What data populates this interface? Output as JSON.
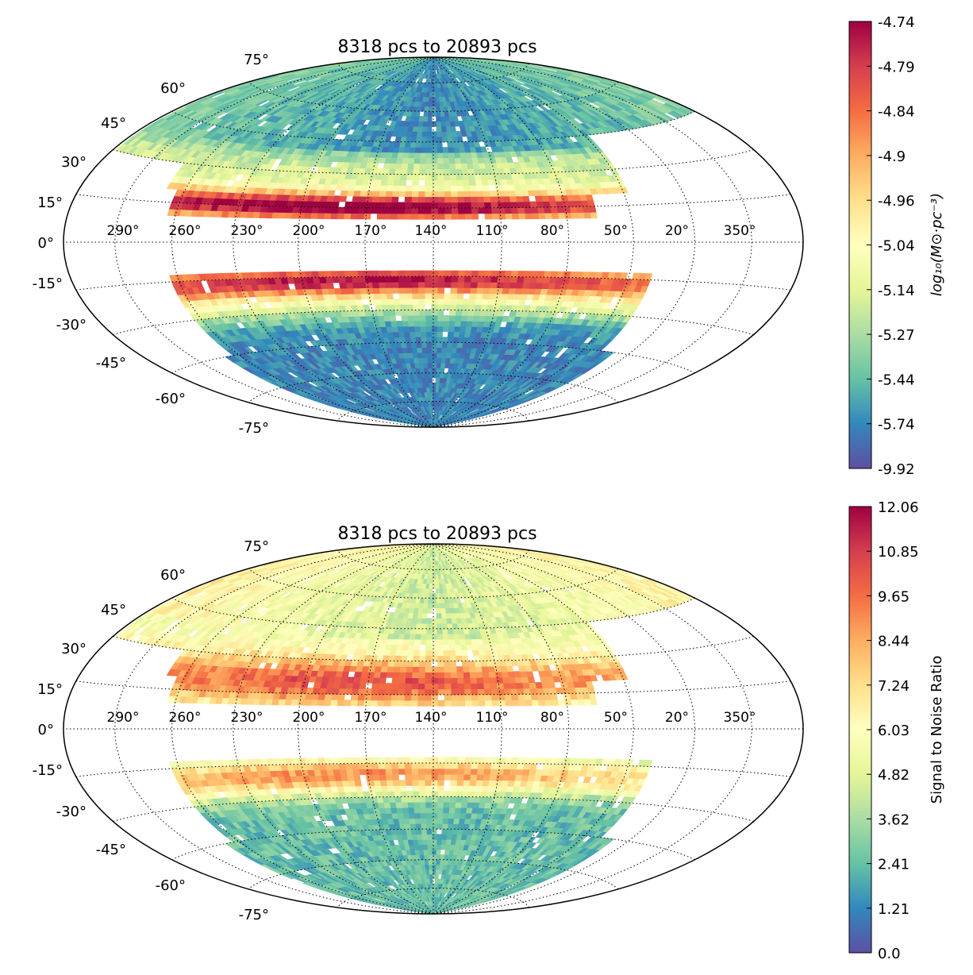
{
  "panels": [
    {
      "title": "8318 pcs to 20893 pcs",
      "lat_labels": [
        "75°",
        "60°",
        "45°",
        "30°",
        "15°",
        "0°",
        "-15°",
        "-30°",
        "-45°",
        "-60°",
        "-75°"
      ],
      "lon_labels": [
        "290°",
        "260°",
        "230°",
        "200°",
        "170°",
        "140°",
        "110°",
        "80°",
        "50°",
        "20°",
        "350°"
      ],
      "colorbar": {
        "label": "log₁₀(M⊙·pc⁻³)",
        "ticks": [
          "-4.74",
          "-4.79",
          "-4.84",
          "-4.9",
          "-4.96",
          "-5.04",
          "-5.14",
          "-5.27",
          "-5.44",
          "-5.74",
          "-9.92"
        ],
        "ticks_order": "top-to-bottom",
        "colormap": "Spectral"
      }
    },
    {
      "title": "8318 pcs to 20893 pcs",
      "lat_labels": [
        "75°",
        "60°",
        "45°",
        "30°",
        "15°",
        "0°",
        "-15°",
        "-30°",
        "-45°",
        "-60°",
        "-75°"
      ],
      "lon_labels": [
        "290°",
        "260°",
        "230°",
        "200°",
        "170°",
        "140°",
        "110°",
        "80°",
        "50°",
        "20°",
        "350°"
      ],
      "colorbar": {
        "label": "Signal to Noise Ratio",
        "ticks": [
          "12.06",
          "10.85",
          "9.65",
          "8.44",
          "7.24",
          "6.03",
          "4.82",
          "3.62",
          "2.41",
          "1.21",
          "0.0"
        ],
        "ticks_order": "top-to-bottom",
        "colormap": "Spectral"
      }
    }
  ],
  "colors": {
    "spectral_stops": [
      "#5e4fa2",
      "#3288bd",
      "#66c2a5",
      "#abdda4",
      "#e6f598",
      "#ffffbf",
      "#fee08b",
      "#fdae61",
      "#f46d43",
      "#d53e4f",
      "#9e0142"
    ]
  },
  "chart_data": [
    {
      "type": "heatmap",
      "projection": "hammer-aitoff",
      "title": "8318 pcs to 20893 pcs",
      "quantity": "log10 density (M☉ pc⁻³)",
      "color_range": [
        -9.92,
        -4.74
      ],
      "lat_gridlines_deg": [
        75,
        60,
        45,
        30,
        15,
        0,
        -15,
        -30,
        -45,
        -60,
        -75
      ],
      "lon_gridlines_deg": [
        290,
        260,
        230,
        200,
        170,
        140,
        110,
        80,
        50,
        20,
        350
      ],
      "grid": true,
      "colorbar": "right",
      "coverage": "north cap b>~10° and south cap b<-~12°, missing east of lon~50° in the north and lon<~30° in the south; no data |b|<~10°",
      "features": [
        {
          "region": "north band b 10-25°, lon 260-80",
          "level": "high (-4.74 to -4.85)"
        },
        {
          "region": "south band b -10 to -20°, lon 290-80",
          "level": "high (-4.8 to -5.0)"
        },
        {
          "region": "high latitudes |b|>40°",
          "level": "low (-5.6 to -5.9)"
        }
      ]
    },
    {
      "type": "heatmap",
      "projection": "hammer-aitoff",
      "title": "8318 pcs to 20893 pcs",
      "quantity": "Signal to Noise Ratio",
      "color_range": [
        0.0,
        12.06
      ],
      "lat_gridlines_deg": [
        75,
        60,
        45,
        30,
        15,
        0,
        -15,
        -30,
        -45,
        -60,
        -75
      ],
      "lon_gridlines_deg": [
        290,
        260,
        230,
        200,
        170,
        140,
        110,
        80,
        50,
        20,
        350
      ],
      "grid": true,
      "colorbar": "right",
      "coverage": "same footprint as density map",
      "features": [
        {
          "region": "north band b 12-30°, lon 260-110",
          "level": "high (8-10)"
        },
        {
          "region": "south band b -15 to -25°, lon 260-110",
          "level": "high (7-9)"
        },
        {
          "region": "high latitudes",
          "level": "low (1-4)"
        }
      ]
    }
  ]
}
